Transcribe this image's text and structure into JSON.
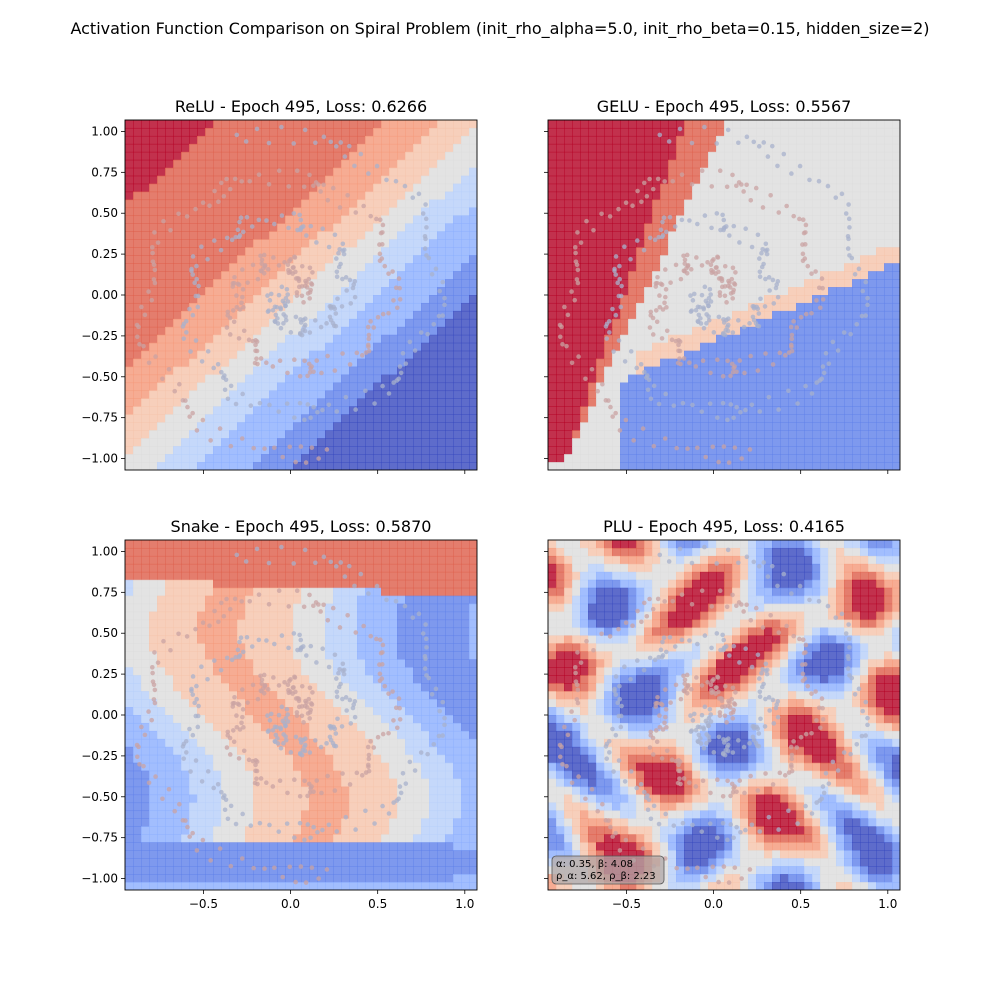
{
  "figure": {
    "title": "Activation Function Comparison on Spiral Problem (init_rho_alpha=5.0, init_rho_beta=0.15, hidden_size=2)"
  },
  "colors": {
    "class_a_points": "#c9a3a3",
    "class_b_points": "#a8b2cc",
    "deep_red": "#b40426",
    "deep_blue": "#3b4cc0",
    "neutral": "#dddddd"
  },
  "chart_data": [
    {
      "type": "contour",
      "title": "ReLU - Epoch 495, Loss: 0.6266",
      "xlabel": "",
      "ylabel": "",
      "xlim": [
        -0.95,
        1.07
      ],
      "ylim": [
        -1.07,
        1.07
      ],
      "x_ticks": [
        "−0.5",
        "0.0",
        "0.5",
        "1.0"
      ],
      "y_ticks": [
        "1.00",
        "0.75",
        "0.50",
        "0.25",
        "0.00",
        "−0.25",
        "−0.50",
        "−0.75",
        "−1.00"
      ],
      "show_x_tick_labels": false,
      "show_y_tick_labels": true,
      "decision_surface": "diagonal bands from top-left (red) to bottom-right (blue)",
      "epoch": 495,
      "loss": 0.6266
    },
    {
      "type": "contour",
      "title": "GELU - Epoch 495, Loss: 0.5567",
      "xlabel": "",
      "ylabel": "",
      "xlim": [
        -0.95,
        1.07
      ],
      "ylim": [
        -1.07,
        1.07
      ],
      "x_ticks": [
        "−0.5",
        "0.0",
        "0.5",
        "1.0"
      ],
      "y_ticks": [
        "1.00",
        "0.75",
        "0.50",
        "0.25",
        "0.00",
        "−0.25",
        "−0.50",
        "−0.75",
        "−1.00"
      ],
      "show_x_tick_labels": false,
      "show_y_tick_labels": false,
      "decision_surface": "red wedge on left, fan of light bands, blue region at bottom-right",
      "epoch": 495,
      "loss": 0.5567
    },
    {
      "type": "contour",
      "title": "Snake - Epoch 495, Loss: 0.5870",
      "xlabel": "",
      "ylabel": "",
      "xlim": [
        -0.95,
        1.07
      ],
      "ylim": [
        -1.07,
        1.07
      ],
      "x_ticks": [
        "−0.5",
        "0.0",
        "0.5",
        "1.0"
      ],
      "y_ticks": [
        "1.00",
        "0.75",
        "0.50",
        "0.25",
        "0.00",
        "−0.25",
        "−0.50",
        "−0.75",
        "−1.00"
      ],
      "show_x_tick_labels": true,
      "show_y_tick_labels": true,
      "decision_surface": "red strip at top, wavy bands, blue elongated basin at bottom",
      "epoch": 495,
      "loss": 0.587
    },
    {
      "type": "contour",
      "title": "PLU - Epoch 495, Loss: 0.4165",
      "xlabel": "",
      "ylabel": "",
      "xlim": [
        -0.95,
        1.07
      ],
      "ylim": [
        -1.07,
        1.07
      ],
      "x_ticks": [
        "−0.5",
        "0.0",
        "0.5",
        "1.0"
      ],
      "y_ticks": [
        "1.00",
        "0.75",
        "0.50",
        "0.25",
        "0.00",
        "−0.25",
        "−0.50",
        "−0.75",
        "−1.00"
      ],
      "show_x_tick_labels": true,
      "show_y_tick_labels": false,
      "decision_surface": "checkerboard of red and blue blobs",
      "epoch": 495,
      "loss": 0.4165,
      "annotation_lines": [
        "α: 0.35, β: 4.08",
        "ρ_α: 5.62, ρ_β: 2.23"
      ]
    }
  ],
  "data_points": {
    "class_a_note": "spiral arm 1 (reddish)",
    "class_b_note": "spiral arm 2 (bluish)"
  }
}
